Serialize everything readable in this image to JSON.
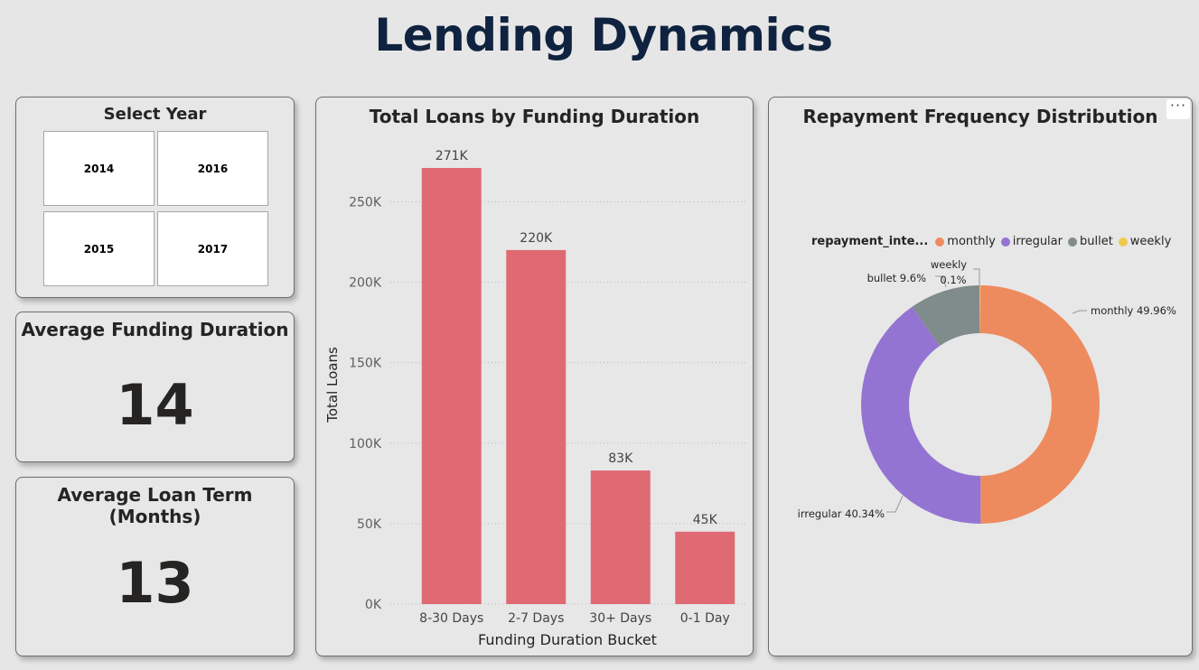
{
  "header": {
    "title": "Lending Dynamics"
  },
  "slicer": {
    "title": "Select Year",
    "years": [
      "2014",
      "2016",
      "2015",
      "2017"
    ]
  },
  "kpi_funding": {
    "title": "Average Funding Duration",
    "value": "14"
  },
  "kpi_term": {
    "title": "Average Loan Term (Months)",
    "value": "13"
  },
  "bar_card": {
    "more_icon": "ellipsis-icon"
  },
  "donut_card": {
    "more_icon_label": "···"
  },
  "chart_data": [
    {
      "type": "bar",
      "title": "Total Loans by Funding Duration",
      "xlabel": "Funding Duration Bucket",
      "ylabel": "Total Loans",
      "categories": [
        "8-30 Days",
        "2-7 Days",
        "30+ Days",
        "0-1 Day"
      ],
      "values": [
        271000,
        220000,
        83000,
        45000
      ],
      "data_labels": [
        "271K",
        "220K",
        "83K",
        "45K"
      ],
      "ylim": [
        0,
        271000
      ],
      "yticks": [
        0,
        50000,
        100000,
        150000,
        200000,
        250000
      ],
      "ytick_labels": [
        "0K",
        "50K",
        "100K",
        "150K",
        "200K",
        "250K"
      ],
      "grid": true,
      "color": "#e06a74"
    },
    {
      "type": "pie",
      "title": "Repayment Frequency Distribution",
      "legend_title": "repayment_inte...",
      "legend_position": "top-left",
      "donut": true,
      "slices": [
        {
          "label": "monthly",
          "value": 49.96,
          "data_label": "monthly 49.96%",
          "color": "#ee8b5e"
        },
        {
          "label": "irregular",
          "value": 40.34,
          "data_label": "irregular 40.34%",
          "color": "#9374d3"
        },
        {
          "label": "bullet",
          "value": 9.6,
          "data_label": "bullet 9.6%",
          "color": "#808b8b"
        },
        {
          "label": "weekly",
          "value": 0.1,
          "data_label_line1": "weekly",
          "data_label_line2": "0.1%",
          "color": "#f1c94e"
        }
      ]
    }
  ]
}
